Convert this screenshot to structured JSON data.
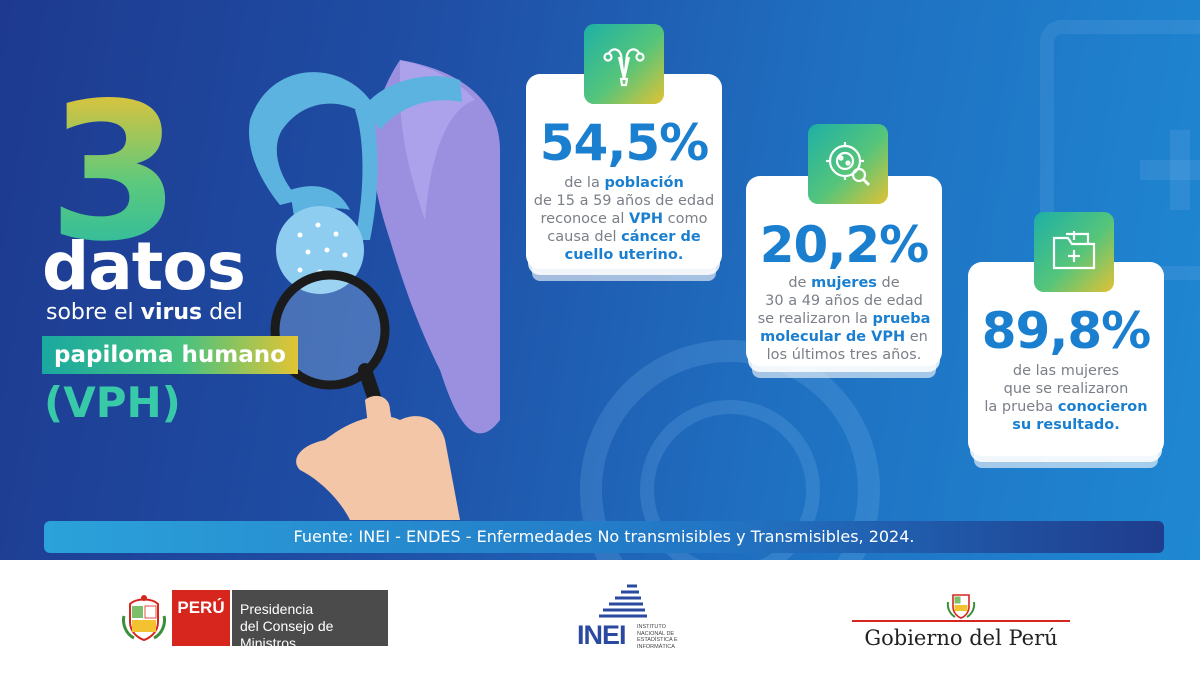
{
  "title": {
    "number": "3",
    "word": "datos",
    "line3_pre": "sobre el ",
    "line3_bold": "virus",
    "line3_post": " del",
    "highlight": "papiloma humano",
    "acronym": "(VPH)"
  },
  "stats": [
    {
      "value": "54,5%",
      "desc": [
        {
          "t": "de la ",
          "b": false
        },
        {
          "t": "población",
          "b": true
        },
        {
          "t": "\nde 15 a 59 años de edad\nreconoce al ",
          "b": false
        },
        {
          "t": "VPH",
          "b": true
        },
        {
          "t": " como\ncausa del ",
          "b": false
        },
        {
          "t": "cáncer de\ncuello uterino.",
          "b": true
        }
      ],
      "icon": "uterus-icon"
    },
    {
      "value": "20,2%",
      "desc": [
        {
          "t": "de ",
          "b": false
        },
        {
          "t": "mujeres",
          "b": true
        },
        {
          "t": " de\n30 a 49 años de edad\nse realizaron la ",
          "b": false
        },
        {
          "t": "prueba\nmolecular de VPH",
          "b": true
        },
        {
          "t": " en\nlos últimos tres años.",
          "b": false
        }
      ],
      "icon": "virus-magnifier-icon"
    },
    {
      "value": "89,8%",
      "desc": [
        {
          "t": "de las mujeres\nque se realizaron\nla prueba ",
          "b": false
        },
        {
          "t": "conocieron\nsu resultado.",
          "b": true
        }
      ],
      "icon": "medical-folder-icon"
    }
  ],
  "source": "Fuente: INEI - ENDES - Enfermedades No transmisibles y Transmisibles, 2024.",
  "footer": {
    "peru_label": "PERÚ",
    "pcm_line1": "Presidencia",
    "pcm_line2": "del Consejo de Ministros",
    "inei_label": "INEI",
    "inei_sub": "INSTITUTO NACIONAL DE ESTADÍSTICA E INFORMÁTICA",
    "gobierno_label": "Gobierno del Perú"
  },
  "colors": {
    "accent_blue": "#1b7fd0",
    "gradient_start": "#1db0a6",
    "gradient_end": "#e2c233",
    "peru_red": "#d7261e"
  }
}
